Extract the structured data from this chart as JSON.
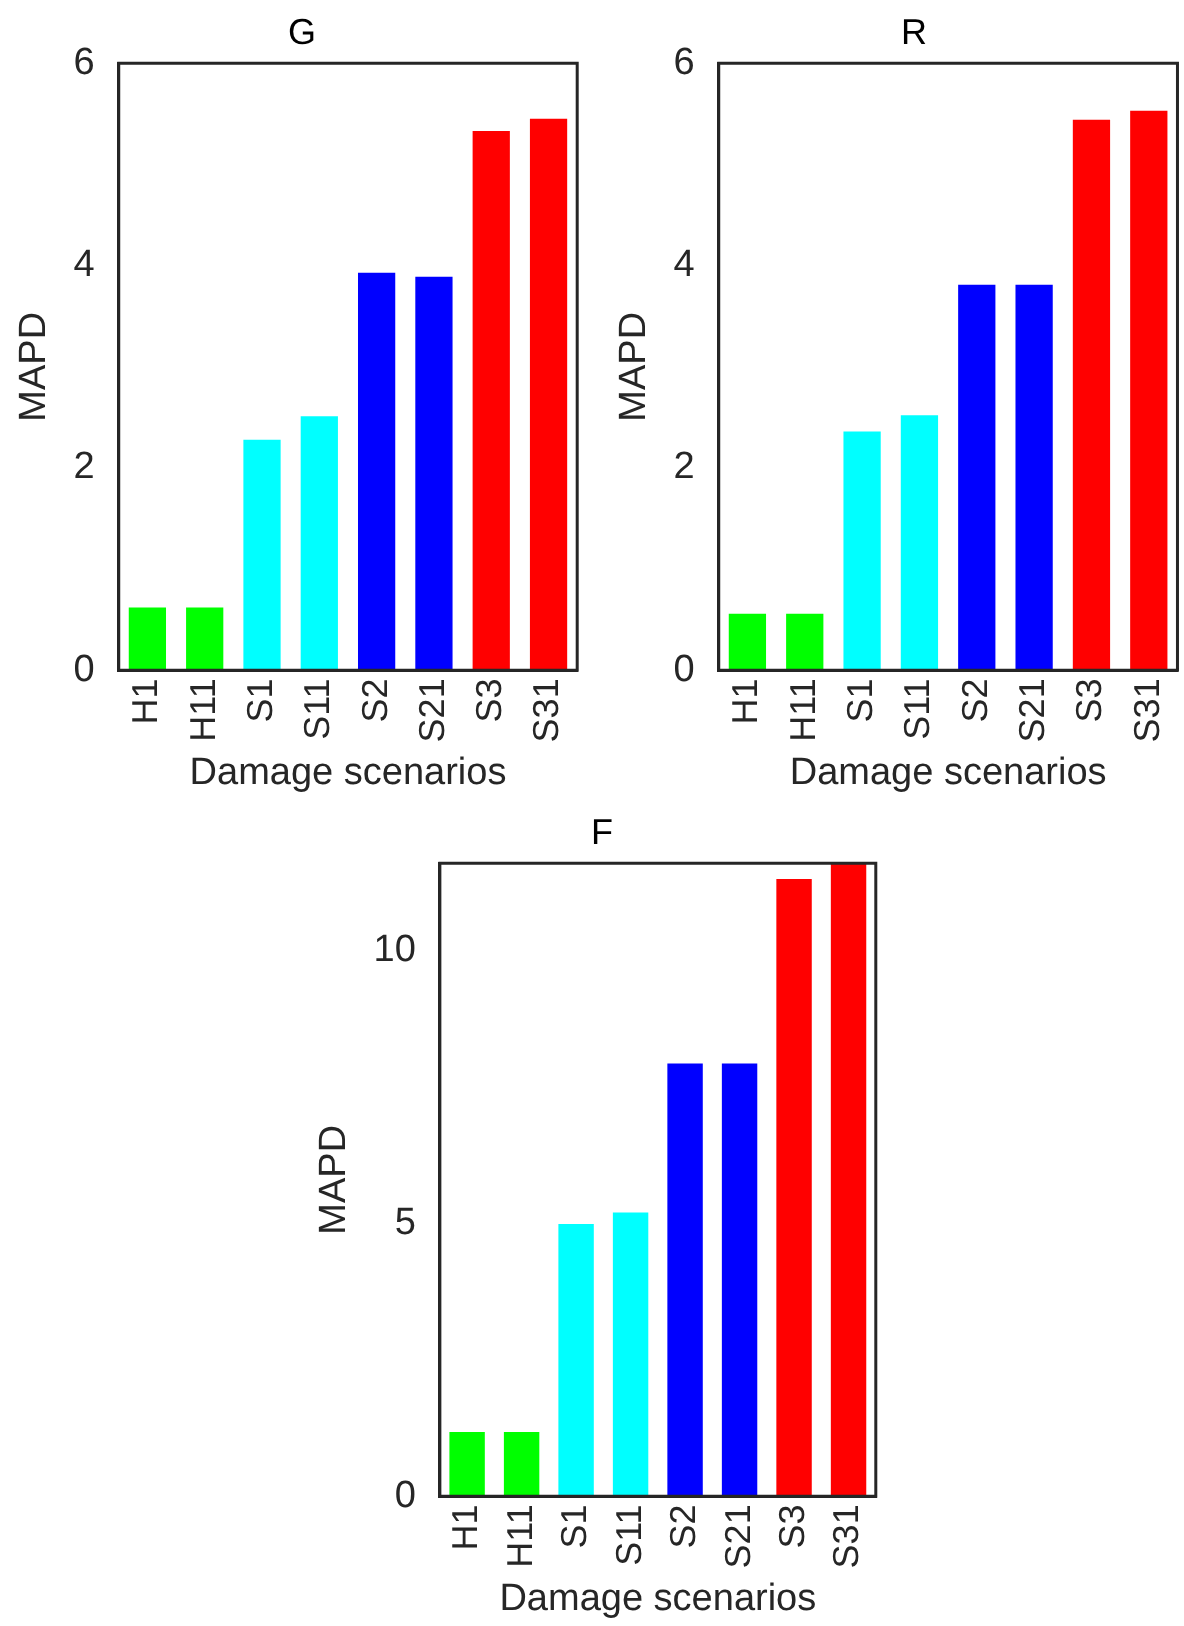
{
  "chart_data": [
    {
      "type": "bar",
      "title": "G",
      "xlabel": "Damage scenarios",
      "ylabel": "MAPD",
      "categories": [
        "H1",
        "H11",
        "S1",
        "S11",
        "S2",
        "S21",
        "S3",
        "S31"
      ],
      "values": [
        0.62,
        0.62,
        2.28,
        2.51,
        3.93,
        3.89,
        5.33,
        5.45
      ],
      "colors": [
        "#00ff00",
        "#00ff00",
        "#00ffff",
        "#00ffff",
        "#0000ff",
        "#0000ff",
        "#ff0000",
        "#ff0000"
      ],
      "ylim": [
        0,
        6
      ],
      "yticks": [
        0,
        2,
        4,
        6
      ],
      "grid": false
    },
    {
      "type": "bar",
      "title": "R",
      "xlabel": "Damage scenarios",
      "ylabel": "MAPD",
      "categories": [
        "H1",
        "H11",
        "S1",
        "S11",
        "S2",
        "S21",
        "S3",
        "S31"
      ],
      "values": [
        0.56,
        0.56,
        2.36,
        2.52,
        3.81,
        3.81,
        5.44,
        5.53
      ],
      "colors": [
        "#00ff00",
        "#00ff00",
        "#00ffff",
        "#00ffff",
        "#0000ff",
        "#0000ff",
        "#ff0000",
        "#ff0000"
      ],
      "ylim": [
        0,
        6
      ],
      "yticks": [
        0,
        2,
        4,
        6
      ],
      "grid": false
    },
    {
      "type": "bar",
      "title": "F",
      "xlabel": "Damage scenarios",
      "ylabel": "MAPD",
      "categories": [
        "H1",
        "H11",
        "S1",
        "S11",
        "S2",
        "S21",
        "S3",
        "S31"
      ],
      "values": [
        1.18,
        1.18,
        4.99,
        5.2,
        7.93,
        7.93,
        11.31,
        11.6
      ],
      "colors": [
        "#00ff00",
        "#00ff00",
        "#00ffff",
        "#00ffff",
        "#0000ff",
        "#0000ff",
        "#ff0000",
        "#ff0000"
      ],
      "ylim": [
        0,
        11.6
      ],
      "yticks": [
        0,
        5,
        10
      ],
      "grid": false
    }
  ]
}
